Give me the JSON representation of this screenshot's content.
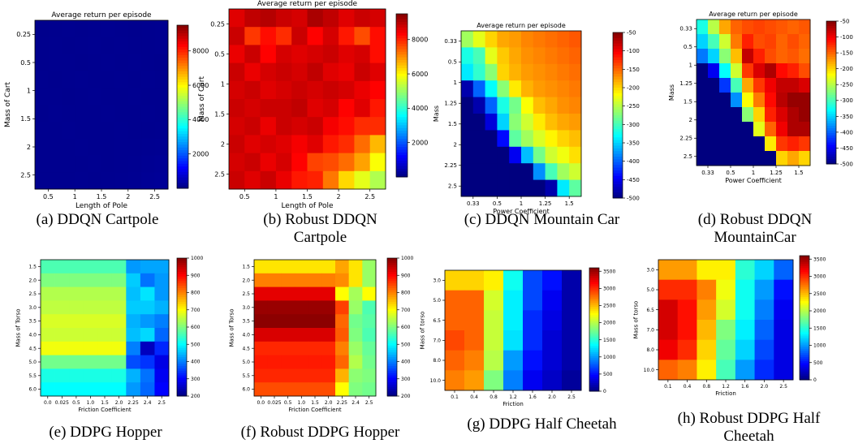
{
  "colormaps": {
    "jet": [
      "#00007f",
      "#0000ff",
      "#007fff",
      "#00ffff",
      "#7fff7f",
      "#ffff00",
      "#ff7f00",
      "#ff0000",
      "#7f0000"
    ]
  },
  "captions": [
    [
      "(a) DDQN Cartpole"
    ],
    [
      "(b) Robust DDQN",
      "Cartpole"
    ],
    [
      "(c) DDQN Mountain Car"
    ],
    [
      "(d) Robust DDQN",
      "MountainCar"
    ],
    [
      "(e) DDPG Hopper"
    ],
    [
      "(f) Robust DDPG Hopper"
    ],
    [
      "(g) DDPG Half Cheetah"
    ],
    [
      "(h) Robust DDPG Half",
      "Cheetah"
    ]
  ],
  "chart_data": [
    {
      "type": "heatmap",
      "title": "Average return per episode",
      "xlabel": "Length of Pole",
      "ylabel": "Mass of Cart",
      "xticks": [
        "0.5",
        "1",
        "1.5",
        "2",
        "2.5"
      ],
      "yticks": [
        "0.25",
        "0.5",
        "1",
        "1.5",
        "2",
        "2.5"
      ],
      "vmin": 0,
      "vmax": 9500,
      "cbar_ticks": [
        2000,
        4000,
        6000,
        8000
      ],
      "rows": 10,
      "cols": 10,
      "values": [
        [
          130,
          140,
          150,
          135,
          145,
          160,
          150,
          140,
          150,
          160
        ],
        [
          140,
          150,
          135,
          145,
          155,
          150,
          160,
          145,
          150,
          155
        ],
        [
          135,
          145,
          150,
          140,
          150,
          155,
          145,
          160,
          150,
          140
        ],
        [
          150,
          140,
          145,
          155,
          150,
          145,
          155,
          150,
          160,
          150
        ],
        [
          145,
          150,
          140,
          150,
          160,
          150,
          145,
          155,
          150,
          145
        ],
        [
          140,
          155,
          150,
          145,
          150,
          160,
          150,
          145,
          155,
          150
        ],
        [
          150,
          145,
          155,
          150,
          145,
          150,
          160,
          150,
          145,
          155
        ],
        [
          145,
          150,
          145,
          155,
          150,
          145,
          155,
          160,
          170,
          180
        ],
        [
          150,
          145,
          150,
          150,
          155,
          150,
          160,
          170,
          190,
          200
        ],
        [
          150,
          150,
          145,
          155,
          150,
          160,
          165,
          180,
          200,
          220
        ]
      ]
    },
    {
      "type": "heatmap",
      "title": "Average return per episode",
      "xlabel": "Length of Pole",
      "ylabel": "Mass of Cart",
      "xticks": [
        "0.5",
        "1",
        "1.5",
        "2",
        "2.5"
      ],
      "yticks": [
        "0.25",
        "0.5",
        "1",
        "1.5",
        "2",
        "2.5"
      ],
      "vmin": 0,
      "vmax": 9500,
      "cbar_ticks": [
        2000,
        4000,
        6000,
        8000
      ],
      "rows": 10,
      "cols": 10,
      "values": [
        [
          8600,
          8900,
          9000,
          8800,
          8700,
          9100,
          8900,
          8600,
          8800,
          8700
        ],
        [
          8800,
          7800,
          8200,
          7900,
          8800,
          8300,
          8700,
          8100,
          7600,
          8200
        ],
        [
          8500,
          8800,
          8300,
          8700,
          8600,
          8700,
          8800,
          8600,
          8700,
          8200
        ],
        [
          8800,
          8500,
          8700,
          8800,
          8700,
          8900,
          8600,
          8500,
          8800,
          8600
        ],
        [
          8700,
          8800,
          8600,
          8700,
          8800,
          8700,
          8800,
          8700,
          8500,
          8300
        ],
        [
          8800,
          8700,
          8800,
          8800,
          8900,
          8600,
          8700,
          8300,
          8600,
          8100
        ],
        [
          8700,
          8800,
          8500,
          8800,
          8700,
          8800,
          8400,
          8200,
          7900,
          7900
        ],
        [
          8800,
          8600,
          8700,
          8600,
          8400,
          8600,
          8100,
          7900,
          7300,
          6600
        ],
        [
          8700,
          8800,
          8500,
          8700,
          8300,
          7700,
          7600,
          7300,
          6800,
          5900
        ],
        [
          8800,
          8600,
          8800,
          8500,
          8100,
          8000,
          7200,
          6300,
          5700,
          5200
        ]
      ]
    },
    {
      "type": "heatmap",
      "title": "Average return per episode",
      "xlabel": "Power Coefficient",
      "ylabel": "Mass",
      "xticks": [
        "0.33",
        "0.5",
        "1",
        "1.25",
        "1.5"
      ],
      "yticks": [
        "0.33",
        "0.5",
        "1",
        "1.25",
        "1.5",
        "2",
        "2.25",
        "2.5"
      ],
      "vmin": -500,
      "vmax": -50,
      "cbar_ticks": [
        -50,
        -100,
        -150,
        -200,
        -250,
        -300,
        -350,
        -400,
        -450,
        -500
      ],
      "rows": 10,
      "cols": 10,
      "values": [
        [
          -260,
          -230,
          -200,
          -180,
          -175,
          -165,
          -160,
          -155,
          -150,
          -145
        ],
        [
          -320,
          -300,
          -230,
          -195,
          -180,
          -170,
          -165,
          -160,
          -155,
          -150
        ],
        [
          -340,
          -310,
          -270,
          -200,
          -185,
          -175,
          -170,
          -165,
          -160,
          -155
        ],
        [
          -480,
          -400,
          -330,
          -270,
          -210,
          -185,
          -175,
          -170,
          -165,
          -160
        ],
        [
          -500,
          -480,
          -400,
          -320,
          -280,
          -220,
          -190,
          -180,
          -170,
          -165
        ],
        [
          -500,
          -500,
          -460,
          -350,
          -270,
          -240,
          -210,
          -190,
          -180,
          -175
        ],
        [
          -500,
          -500,
          -500,
          -440,
          -290,
          -260,
          -235,
          -215,
          -200,
          -190
        ],
        [
          -500,
          -500,
          -500,
          -500,
          -450,
          -360,
          -280,
          -240,
          -225,
          -205
        ],
        [
          -500,
          -500,
          -500,
          -500,
          -500,
          -500,
          -380,
          -300,
          -260,
          -240
        ],
        [
          -500,
          -500,
          -500,
          -500,
          -500,
          -500,
          -500,
          -480,
          -340,
          -290
        ]
      ]
    },
    {
      "type": "heatmap",
      "title": "Average return per episode",
      "xlabel": "Power Coefficient",
      "ylabel": "Mass",
      "xticks": [
        "0.33",
        "0.5",
        "1",
        "1.25",
        "1.5"
      ],
      "yticks": [
        "0.33",
        "0.5",
        "1",
        "1.25",
        "1.5",
        "2",
        "2.25",
        "2.5"
      ],
      "vmin": -500,
      "vmax": -50,
      "cbar_ticks": [
        -50,
        -100,
        -150,
        -200,
        -250,
        -300,
        -350,
        -400,
        -450,
        -500
      ],
      "rows": 10,
      "cols": 10,
      "values": [
        [
          -320,
          -250,
          -180,
          -150,
          -140,
          -135,
          -140,
          -145,
          -150,
          -145
        ],
        [
          -350,
          -300,
          -240,
          -160,
          -120,
          -140,
          -135,
          -150,
          -140,
          -150
        ],
        [
          -390,
          -350,
          -270,
          -190,
          -80,
          -120,
          -140,
          -150,
          -145,
          -155
        ],
        [
          -500,
          -450,
          -330,
          -240,
          -130,
          -90,
          -70,
          -110,
          -120,
          -140
        ],
        [
          -500,
          -500,
          -420,
          -300,
          -180,
          -130,
          -100,
          -80,
          -80,
          -90
        ],
        [
          -500,
          -500,
          -500,
          -380,
          -220,
          -160,
          -110,
          -75,
          -60,
          -60
        ],
        [
          -500,
          -500,
          -500,
          -500,
          -270,
          -200,
          -120,
          -90,
          -70,
          -60
        ],
        [
          -500,
          -500,
          -500,
          -500,
          -500,
          -230,
          -150,
          -100,
          -70,
          -70
        ],
        [
          -500,
          -500,
          -500,
          -500,
          -500,
          -500,
          -210,
          -130,
          -120,
          -130
        ],
        [
          -500,
          -500,
          -500,
          -500,
          -500,
          -500,
          -500,
          -200,
          -180,
          -200
        ]
      ]
    },
    {
      "type": "heatmap",
      "title": "",
      "xlabel": "Friction Coefficient",
      "ylabel": "Mass of Torso",
      "xticks": [
        "0.0",
        "0.025",
        "0.5",
        "1.0",
        "1.5",
        "2.0",
        "2.25",
        "2.4",
        "2.5"
      ],
      "yticks": [
        "1.5",
        "2.0",
        "2.5",
        "3.0",
        "3.5",
        "4.0",
        "4.5",
        "5.0",
        "5.5",
        "6.0"
      ],
      "vmin": 200,
      "vmax": 1000,
      "cbar_ticks": [
        200,
        300,
        400,
        500,
        600,
        700,
        800,
        900,
        1000
      ],
      "rows": 10,
      "cols": 9,
      "values": [
        [
          560,
          560,
          560,
          560,
          560,
          560,
          420,
          430,
          430
        ],
        [
          600,
          600,
          600,
          600,
          600,
          600,
          460,
          390,
          420
        ],
        [
          640,
          640,
          640,
          640,
          640,
          640,
          450,
          480,
          420
        ],
        [
          650,
          650,
          650,
          650,
          650,
          650,
          460,
          460,
          440
        ],
        [
          670,
          670,
          670,
          670,
          670,
          670,
          440,
          420,
          400
        ],
        [
          660,
          660,
          660,
          660,
          660,
          660,
          450,
          470,
          380
        ],
        [
          690,
          690,
          690,
          690,
          690,
          690,
          400,
          250,
          330
        ],
        [
          590,
          590,
          590,
          590,
          590,
          590,
          360,
          340,
          280
        ],
        [
          520,
          520,
          520,
          520,
          520,
          520,
          440,
          390,
          290
        ],
        [
          500,
          500,
          500,
          500,
          500,
          500,
          420,
          380,
          300
        ]
      ]
    },
    {
      "type": "heatmap",
      "title": "",
      "xlabel": "Friction Coefficient",
      "ylabel": "Mass of Torso",
      "xticks": [
        "0.0",
        "0.025",
        "0.5",
        "1.0",
        "1.5",
        "2.0",
        "2.25",
        "2.4",
        "2.5"
      ],
      "yticks": [
        "1.5",
        "2.0",
        "2.5",
        "3.0",
        "3.5",
        "4.0",
        "4.5",
        "5.0",
        "5.5",
        "6.0"
      ],
      "vmin": 200,
      "vmax": 1000,
      "cbar_ticks": [
        200,
        300,
        400,
        500,
        600,
        700,
        800,
        900,
        1000
      ],
      "rows": 10,
      "cols": 9,
      "values": [
        [
          720,
          720,
          720,
          720,
          720,
          720,
          770,
          720,
          620
        ],
        [
          800,
          800,
          800,
          800,
          800,
          800,
          790,
          720,
          620
        ],
        [
          920,
          920,
          920,
          920,
          920,
          920,
          700,
          630,
          700
        ],
        [
          980,
          980,
          980,
          980,
          980,
          980,
          850,
          620,
          560
        ],
        [
          990,
          990,
          990,
          990,
          990,
          990,
          820,
          590,
          570
        ],
        [
          930,
          930,
          930,
          930,
          930,
          930,
          830,
          600,
          560
        ],
        [
          870,
          870,
          870,
          870,
          870,
          870,
          800,
          620,
          580
        ],
        [
          880,
          880,
          880,
          880,
          880,
          880,
          820,
          640,
          590
        ],
        [
          870,
          870,
          870,
          870,
          870,
          870,
          760,
          610,
          600
        ],
        [
          840,
          840,
          840,
          840,
          840,
          840,
          700,
          600,
          590
        ]
      ]
    },
    {
      "type": "heatmap",
      "title": "",
      "xlabel": "Friction",
      "ylabel": "Mass of torso",
      "xticks": [
        "0.1",
        "0.4",
        "0.8",
        "1.2",
        "1.6",
        "2.0",
        "2.5"
      ],
      "yticks": [
        "3.0",
        "5.0",
        "6.5",
        "7.0",
        "8.0",
        "10.0"
      ],
      "vmin": 0,
      "vmax": 3600,
      "cbar_ticks": [
        0,
        500,
        1000,
        1500,
        2000,
        2500,
        3000,
        3500
      ],
      "rows": 6,
      "cols": 7,
      "values": [
        [
          2400,
          2400,
          2300,
          1400,
          700,
          500,
          150
        ],
        [
          2800,
          2800,
          2100,
          1300,
          700,
          400,
          150
        ],
        [
          2800,
          2800,
          2050,
          1300,
          600,
          350,
          150
        ],
        [
          2900,
          2800,
          2050,
          1250,
          600,
          300,
          150
        ],
        [
          2800,
          2700,
          2000,
          1000,
          500,
          300,
          150
        ],
        [
          2700,
          2600,
          1800,
          900,
          400,
          250,
          100
        ]
      ]
    },
    {
      "type": "heatmap",
      "title": "",
      "xlabel": "Friction",
      "ylabel": "Mass of torso",
      "xticks": [
        "0.1",
        "0.4",
        "0.8",
        "1.2",
        "1.6",
        "2.0",
        "2.5"
      ],
      "yticks": [
        "3.0",
        "5.0",
        "6.5",
        "7.0",
        "8.0",
        "10.0"
      ],
      "vmin": 0,
      "vmax": 3600,
      "cbar_ticks": [
        0,
        500,
        1000,
        1500,
        2000,
        2500,
        3000,
        3500
      ],
      "rows": 6,
      "cols": 7,
      "values": [
        [
          2600,
          2600,
          2300,
          2300,
          1500,
          1200,
          800
        ],
        [
          3000,
          3000,
          2700,
          2200,
          1400,
          1000,
          500
        ],
        [
          3300,
          3100,
          2600,
          2100,
          1400,
          900,
          400
        ],
        [
          3300,
          3100,
          2500,
          1800,
          1300,
          800,
          350
        ],
        [
          3200,
          3000,
          2400,
          1700,
          1200,
          700,
          350
        ],
        [
          2800,
          2700,
          2300,
          1600,
          1000,
          600,
          350
        ]
      ]
    }
  ]
}
